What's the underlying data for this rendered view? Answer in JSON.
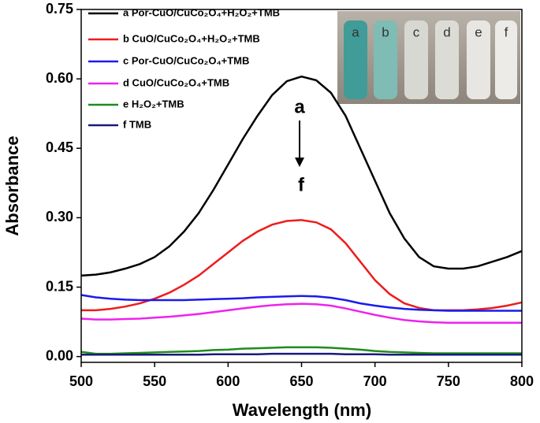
{
  "chart_data": {
    "type": "line",
    "xlabel": "Wavelength (nm)",
    "ylabel": "Absorbance",
    "x": [
      500,
      510,
      520,
      530,
      540,
      550,
      560,
      570,
      580,
      590,
      600,
      610,
      620,
      630,
      640,
      650,
      660,
      670,
      680,
      690,
      700,
      710,
      720,
      730,
      740,
      750,
      760,
      770,
      780,
      790,
      800
    ],
    "series": [
      {
        "name": "a Por-CuO/CuCo₂O₄+H₂O₂+TMB",
        "color": "#000000",
        "values": [
          0.175,
          0.177,
          0.182,
          0.19,
          0.2,
          0.215,
          0.238,
          0.27,
          0.31,
          0.36,
          0.415,
          0.47,
          0.52,
          0.565,
          0.595,
          0.605,
          0.597,
          0.57,
          0.52,
          0.45,
          0.38,
          0.31,
          0.255,
          0.215,
          0.195,
          0.19,
          0.19,
          0.195,
          0.205,
          0.215,
          0.228
        ]
      },
      {
        "name": "b CuO/CuCo₂O₄+H₂O₂+TMB",
        "color": "#ee1c1c",
        "values": [
          0.1,
          0.1,
          0.103,
          0.108,
          0.115,
          0.125,
          0.138,
          0.155,
          0.175,
          0.2,
          0.225,
          0.25,
          0.27,
          0.285,
          0.293,
          0.295,
          0.29,
          0.275,
          0.245,
          0.205,
          0.165,
          0.135,
          0.115,
          0.105,
          0.1,
          0.1,
          0.1,
          0.102,
          0.105,
          0.11,
          0.117
        ]
      },
      {
        "name": "c Por-CuO/CuCo₂O₄+TMB",
        "color": "#1a1aee",
        "values": [
          0.133,
          0.128,
          0.125,
          0.123,
          0.122,
          0.122,
          0.122,
          0.122,
          0.123,
          0.124,
          0.125,
          0.126,
          0.128,
          0.129,
          0.13,
          0.131,
          0.13,
          0.127,
          0.122,
          0.115,
          0.11,
          0.106,
          0.103,
          0.101,
          0.1,
          0.099,
          0.099,
          0.099,
          0.099,
          0.099,
          0.099
        ]
      },
      {
        "name": "d CuO/CuCo₂O₄+TMB",
        "color": "#ee22ee",
        "values": [
          0.082,
          0.08,
          0.08,
          0.081,
          0.082,
          0.084,
          0.086,
          0.089,
          0.092,
          0.096,
          0.1,
          0.104,
          0.108,
          0.111,
          0.113,
          0.114,
          0.113,
          0.11,
          0.104,
          0.097,
          0.09,
          0.084,
          0.079,
          0.076,
          0.074,
          0.073,
          0.073,
          0.073,
          0.073,
          0.073,
          0.073
        ]
      },
      {
        "name": "e H₂O₂+TMB",
        "color": "#1e8c1e",
        "values": [
          0.01,
          0.006,
          0.006,
          0.007,
          0.008,
          0.009,
          0.01,
          0.011,
          0.012,
          0.014,
          0.015,
          0.017,
          0.018,
          0.019,
          0.02,
          0.02,
          0.02,
          0.019,
          0.017,
          0.015,
          0.012,
          0.01,
          0.009,
          0.008,
          0.007,
          0.007,
          0.007,
          0.007,
          0.007,
          0.007,
          0.007
        ]
      },
      {
        "name": "f TMB",
        "color": "#1a1a7a",
        "values": [
          0.004,
          0.004,
          0.004,
          0.004,
          0.004,
          0.004,
          0.004,
          0.004,
          0.004,
          0.005,
          0.005,
          0.005,
          0.005,
          0.006,
          0.006,
          0.006,
          0.006,
          0.006,
          0.005,
          0.005,
          0.005,
          0.004,
          0.004,
          0.004,
          0.004,
          0.004,
          0.004,
          0.004,
          0.004,
          0.004,
          0.004
        ]
      }
    ],
    "xlim": [
      500,
      800
    ],
    "xticks": [
      500,
      550,
      600,
      650,
      700,
      750,
      800
    ],
    "ylim": [
      -0.0125,
      0.75
    ],
    "yticks": [
      {
        "value": 0,
        "label": "0.00"
      },
      {
        "value": 0.15,
        "label": "0.15"
      },
      {
        "value": 0.3,
        "label": "0.30"
      },
      {
        "value": 0.45,
        "label": "0.45"
      },
      {
        "value": 0.6,
        "label": "0.60"
      },
      {
        "value": 0.75,
        "label": "0.75"
      }
    ],
    "legend": "upper-left",
    "annotations": [
      "a",
      "f"
    ],
    "inset_labels": [
      "a",
      "b",
      "c",
      "d",
      "e",
      "f"
    ]
  }
}
